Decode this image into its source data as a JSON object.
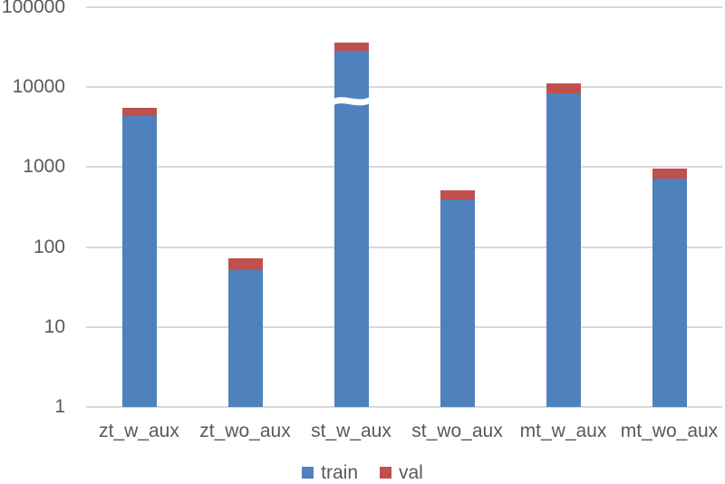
{
  "chart_data": {
    "type": "bar",
    "stacked": true,
    "yscale": "log",
    "title": "",
    "xlabel": "",
    "ylabel": "",
    "categories": [
      "zt_w_aux",
      "zt_wo_aux",
      "st_w_aux",
      "st_wo_aux",
      "mt_w_aux",
      "mt_wo_aux"
    ],
    "series": [
      {
        "name": "train",
        "color": "#4F81BD",
        "values": [
          4400,
          52,
          28300,
          390,
          8300,
          713
        ]
      },
      {
        "name": "val",
        "color": "#C0504D",
        "values": [
          1150,
          21,
          7800,
          118,
          2800,
          237
        ]
      }
    ],
    "stack_totals": [
      5550,
      73,
      36100,
      508,
      11100,
      950
    ],
    "y_ticks": [
      "1",
      "10",
      "100",
      "1000",
      "10000",
      "100000"
    ],
    "ylim": [
      1,
      100000
    ],
    "grid": true,
    "legend_position": "bottom",
    "bar_break": {
      "category": "st_w_aux",
      "value": 6600
    }
  },
  "legend": {
    "items": [
      {
        "label": "train",
        "color": "#4F81BD"
      },
      {
        "label": "val",
        "color": "#C0504D"
      }
    ]
  },
  "colors": {
    "train": "#4F81BD",
    "val": "#C0504D",
    "gridline": "#D9D9D9",
    "text": "#595959",
    "background": "#FFFFFF"
  }
}
